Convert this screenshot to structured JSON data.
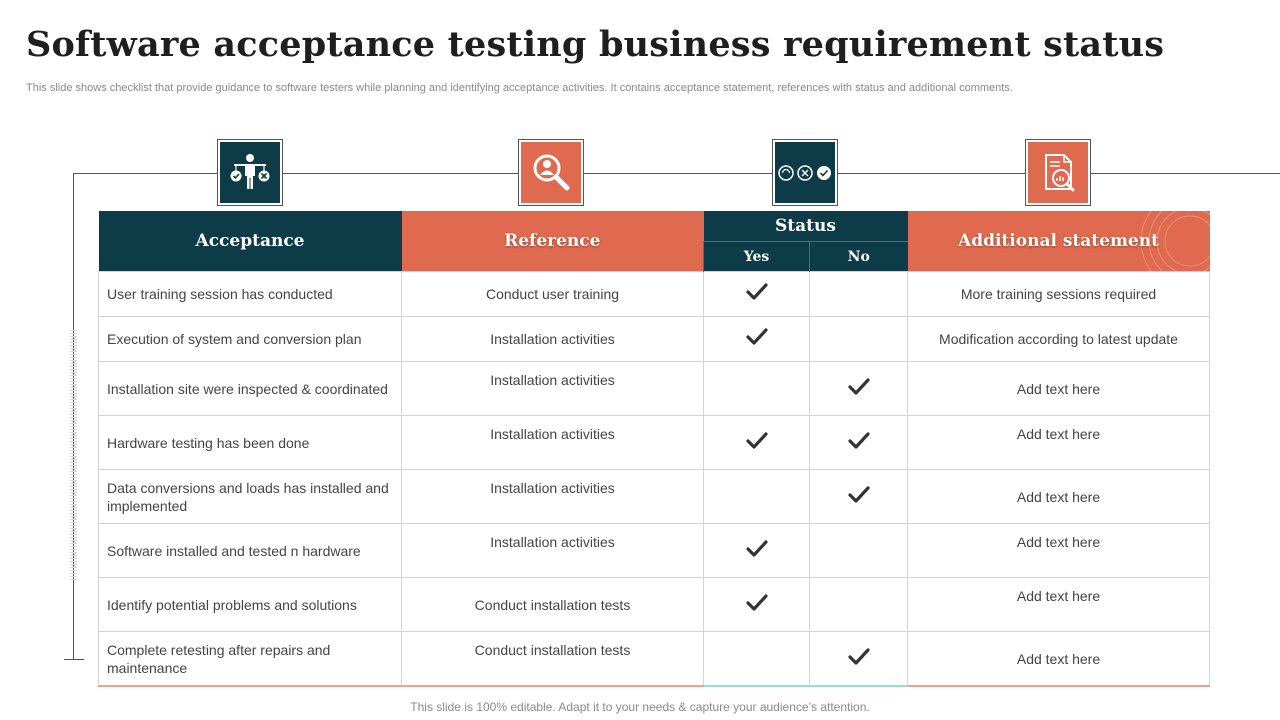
{
  "title": "Software acceptance testing business requirement status",
  "subtitle": "This slide shows checklist that provide guidance to software testers while planning and identifying acceptance activities. It contains acceptance statement, references with status and additional comments.",
  "footer": "This slide is 100% editable. Adapt it to your needs & capture your audience’s attention.",
  "colors": {
    "dark_teal": "#0d3b47",
    "coral": "#e06a4f"
  },
  "icons": [
    "balance-person-icon",
    "search-person-icon",
    "status-choices-icon",
    "document-analysis-icon"
  ],
  "table": {
    "headers": {
      "acceptance": "Acceptance",
      "reference": "Reference",
      "status": "Status",
      "yes": "Yes",
      "no": "No",
      "additional": "Additional statement"
    },
    "rows": [
      {
        "acceptance": "User training session has conducted",
        "reference": "Conduct user training",
        "yes": true,
        "no": false,
        "additional": "More training sessions required"
      },
      {
        "acceptance": "Execution of system and conversion plan",
        "reference": "Installation activities",
        "yes": true,
        "no": false,
        "additional": "Modification according to latest update"
      },
      {
        "acceptance": "Installation site were inspected & coordinated",
        "reference": "Installation activities",
        "yes": false,
        "no": true,
        "additional": "Add text here"
      },
      {
        "acceptance": "Hardware testing has been done",
        "reference": "Installation activities",
        "yes": true,
        "no": true,
        "additional": "Add text here"
      },
      {
        "acceptance": "Data conversions and loads has installed and implemented",
        "reference": "Installation activities",
        "yes": false,
        "no": true,
        "additional": "Add text here"
      },
      {
        "acceptance": "Software installed and tested n hardware",
        "reference": "Installation activities",
        "yes": true,
        "no": false,
        "additional": "Add text here"
      },
      {
        "acceptance": "Identify potential problems and solutions",
        "reference": "Conduct installation tests",
        "yes": true,
        "no": false,
        "additional": "Add text here"
      },
      {
        "acceptance": "Complete retesting after repairs and maintenance",
        "reference": "Conduct installation tests",
        "yes": false,
        "no": true,
        "additional": "Add text here"
      }
    ]
  }
}
